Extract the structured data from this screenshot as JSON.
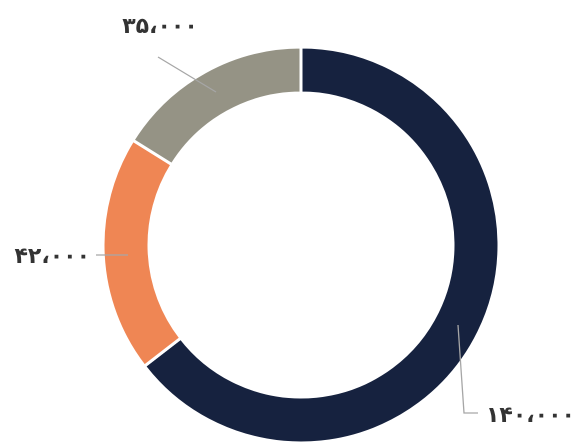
{
  "chart_data": {
    "type": "pie",
    "variant": "donut",
    "title": "",
    "slices": [
      {
        "value": 140000,
        "label": "۱۴۰،۰۰۰",
        "color": "#16223f"
      },
      {
        "value": 42000,
        "label": "۴۲،۰۰۰",
        "color": "#ef8654"
      },
      {
        "value": 35000,
        "label": "۳۵،۰۰۰",
        "color": "#959385"
      }
    ],
    "start_angle_deg": 0,
    "direction": "clockwise",
    "legend": "none"
  }
}
